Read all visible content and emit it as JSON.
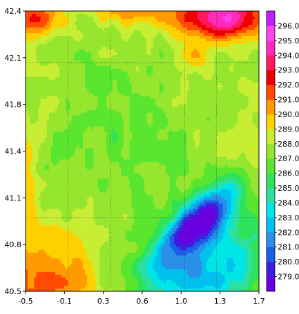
{
  "chart_data": {
    "type": "heatmap",
    "title": "",
    "xlabel": "",
    "ylabel": "",
    "xlim": [
      -0.5,
      1.7
    ],
    "ylim": [
      40.5,
      42.4
    ],
    "x_ticks": [
      "-0.5",
      "-0.1",
      "0.3",
      "0.6",
      "1.0",
      "1.3",
      "1.7"
    ],
    "y_ticks": [
      "40.5",
      "40.8",
      "41.1",
      "41.4",
      "41.8",
      "42.1",
      "42.4"
    ],
    "grid_lon": [
      -0.1,
      0.3,
      1.0,
      1.3
    ],
    "grid_lat": [
      41.0,
      42.05
    ],
    "colorbar": {
      "levels": [
        "279.0",
        "280.0",
        "281.0",
        "282.0",
        "283.0",
        "284.0",
        "285.0",
        "286.0",
        "287.0",
        "288.0",
        "289.0",
        "290.0",
        "291.0",
        "292.0",
        "293.0",
        "294.0",
        "295.0",
        "296.0"
      ],
      "colors": [
        "#6a00e0",
        "#3f1ee0",
        "#1a5fe8",
        "#2a8fe8",
        "#00c0ee",
        "#00e5e5",
        "#2de0a0",
        "#2ee35a",
        "#5ae52e",
        "#96e52e",
        "#c8ee34",
        "#ffd000",
        "#ff9a00",
        "#ff4a00",
        "#ee0000",
        "#ff1a60",
        "#ff2bbf",
        "#ff44f0",
        "#c020ff"
      ],
      "position": "right"
    },
    "field": {
      "grid_size": [
        44,
        38
      ],
      "features": [
        {
          "kind": "low",
          "desc": "cold basin",
          "lon": 1.15,
          "lat": 40.98,
          "value": 279.0
        },
        {
          "kind": "high",
          "desc": "warm southwest",
          "lon": -0.4,
          "lat": 40.6,
          "value": 291.0
        },
        {
          "kind": "high",
          "desc": "warm north ridge",
          "lon": 1.4,
          "lat": 42.3,
          "value": 295.0
        },
        {
          "kind": "high",
          "desc": "warm northwest",
          "lon": -0.4,
          "lat": 42.3,
          "value": 291.5
        }
      ]
    }
  }
}
